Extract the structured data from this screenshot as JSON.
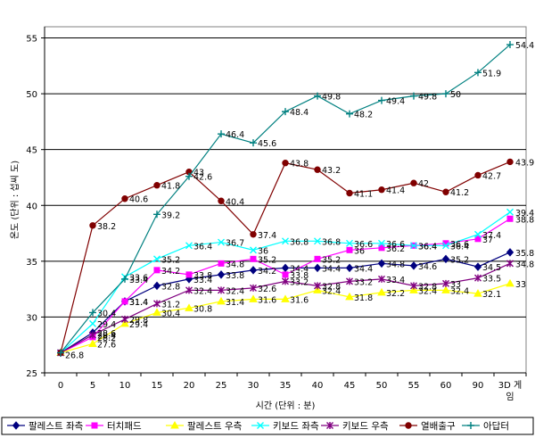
{
  "chart_data": {
    "type": "line",
    "title": "",
    "xlabel": "시간 (단위 : 분)",
    "ylabel": "온도 (단위 : 섭씨 도)",
    "ylim": [
      25,
      56
    ],
    "yticks": [
      25,
      30,
      35,
      40,
      45,
      50,
      55
    ],
    "categories": [
      "0",
      "5",
      "10",
      "15",
      "20",
      "25",
      "30",
      "35",
      "40",
      "45",
      "50",
      "55",
      "60",
      "90",
      "3D 게임"
    ],
    "grid": "horizontal",
    "legend_position": "bottom",
    "series": [
      {
        "name": "팔레스트 좌측",
        "color": "#00007f",
        "marker": "diamond",
        "values": [
          26.8,
          28.6,
          31.4,
          32.8,
          33.4,
          33.8,
          34.2,
          34.4,
          34.4,
          34.4,
          34.8,
          34.6,
          35.2,
          34.5,
          35.8
        ]
      },
      {
        "name": "터치패드",
        "color": "#ff00ff",
        "marker": "square",
        "values": [
          26.8,
          28.2,
          31.4,
          34.2,
          33.8,
          34.8,
          35.2,
          33.8,
          35.2,
          36.0,
          36.2,
          36.4,
          36.6,
          37.0,
          38.8
        ]
      },
      {
        "name": "팔레스트 우측",
        "color": "#ffff00",
        "marker": "triangle",
        "values": [
          26.8,
          27.6,
          29.4,
          30.4,
          30.8,
          31.4,
          31.6,
          31.6,
          32.4,
          31.8,
          32.2,
          32.4,
          32.4,
          32.1,
          33.0
        ]
      },
      {
        "name": "키보드 좌측",
        "color": "#00ffff",
        "marker": "x",
        "values": [
          26.8,
          29.4,
          33.6,
          35.2,
          36.4,
          36.7,
          36.0,
          36.8,
          36.8,
          36.6,
          36.6,
          36.4,
          36.4,
          37.4,
          39.4
        ]
      },
      {
        "name": "키보드 우측",
        "color": "#800080",
        "marker": "star",
        "values": [
          26.8,
          28.4,
          29.8,
          31.2,
          32.4,
          32.4,
          32.6,
          33.2,
          32.8,
          33.2,
          33.4,
          32.8,
          33.0,
          33.5,
          34.8
        ]
      },
      {
        "name": "열배출구",
        "color": "#800000",
        "marker": "circle",
        "values": [
          26.8,
          38.2,
          40.6,
          41.8,
          43.0,
          40.4,
          37.4,
          43.8,
          43.2,
          41.1,
          41.4,
          42.0,
          41.2,
          42.7,
          43.9
        ]
      },
      {
        "name": "아답터",
        "color": "#008080",
        "marker": "plus",
        "values": [
          26.8,
          30.4,
          33.4,
          39.2,
          42.6,
          46.4,
          45.6,
          48.4,
          49.8,
          48.2,
          49.4,
          49.8,
          50.0,
          51.9,
          54.4
        ]
      }
    ],
    "point_labels": [
      [
        "26.8",
        "28.6",
        "31.4",
        "32.8",
        "33.4",
        "33.8",
        "34.2",
        "34.4",
        "34.4",
        "34.4",
        "34.8",
        "34.6",
        "35.2",
        "34.5",
        "35.8"
      ],
      [
        "",
        "28.2",
        "31.4",
        "34.2",
        "33.8",
        "34.8",
        "35.2",
        "33.8",
        "35.2",
        "36",
        "36.2",
        "36.4",
        "36.6",
        "37",
        "38.8"
      ],
      [
        "",
        "27.6",
        "29.4",
        "30.4",
        "30.8",
        "31.4",
        "31.6",
        "31.6",
        "32.4",
        "31.8",
        "32.2",
        "32.4",
        "32.4",
        "32.1",
        "33"
      ],
      [
        "",
        "29.4",
        "33.6",
        "35.2",
        "36.4",
        "36.7",
        "36",
        "36.8",
        "36.8",
        "36.6",
        "36.6",
        "36.4",
        "36.4",
        "37.4",
        "39.4"
      ],
      [
        "",
        "28.4",
        "29.8",
        "31.2",
        "32.4",
        "32.4",
        "32.6",
        "33.2",
        "32.8",
        "33.2",
        "33.4",
        "32.8",
        "33",
        "33.5",
        "34.8"
      ],
      [
        "",
        "38.2",
        "40.6",
        "41.8",
        "43",
        "40.4",
        "37.4",
        "43.8",
        "43.2",
        "41.1",
        "41.4",
        "42",
        "41.2",
        "42.7",
        "43.9"
      ],
      [
        "",
        "30.4",
        "33.4",
        "39.2",
        "42.6",
        "46.4",
        "45.6",
        "48.4",
        "49.8",
        "48.2",
        "49.4",
        "49.8",
        "50",
        "51.9",
        "54.4"
      ]
    ]
  }
}
